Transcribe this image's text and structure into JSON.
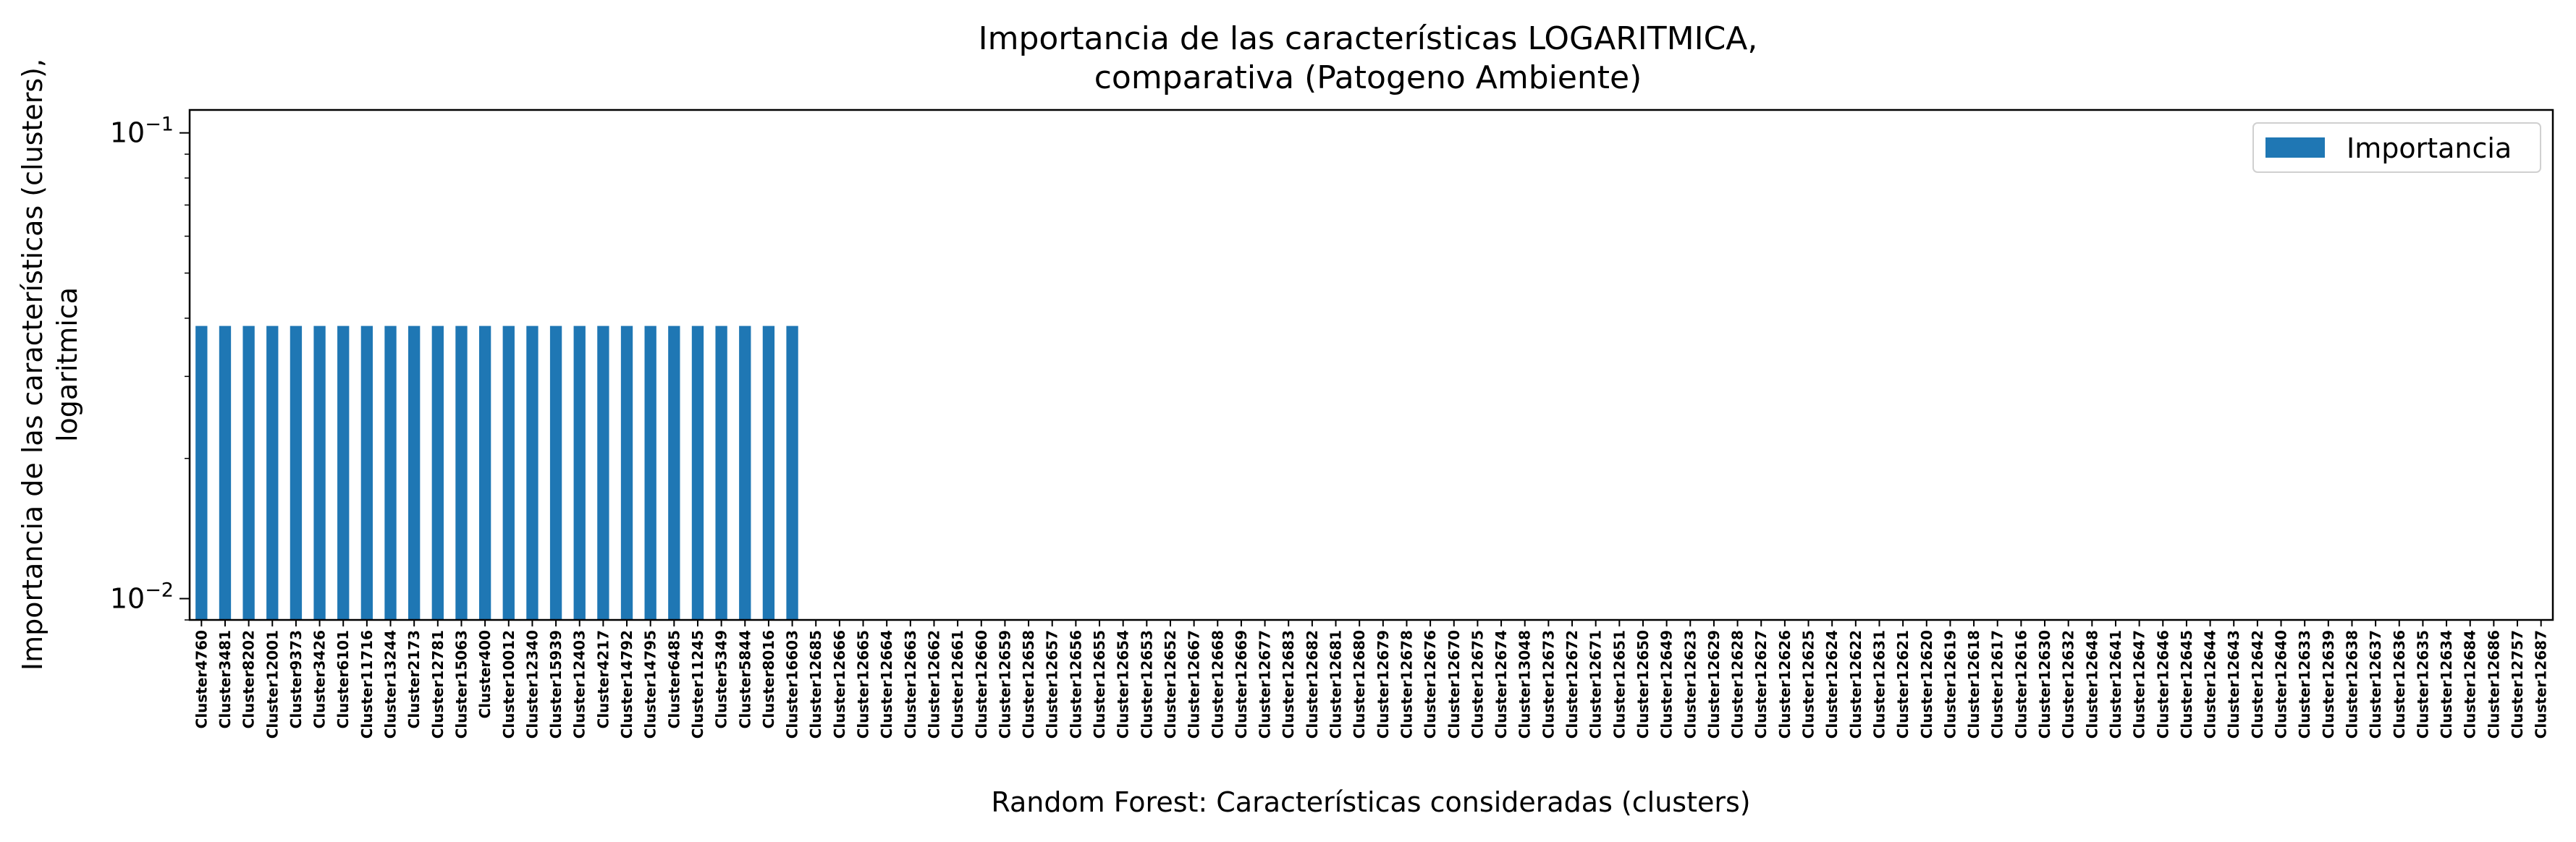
{
  "chart_data": {
    "type": "bar",
    "title_line1": "Importancia de las características LOGARITMICA,",
    "title_line2": "comparativa (Patogeno Ambiente)",
    "xlabel": "Random Forest: Características consideradas (clusters)",
    "ylabel_line1": "Importancia de las características (clusters),",
    "ylabel_line2": "logaritmica",
    "yscale": "log",
    "ylim": [
      0.009,
      0.112
    ],
    "yticks": [
      {
        "value": 0.1,
        "base": "10",
        "exp": "−1"
      },
      {
        "value": 0.01,
        "base": "10",
        "exp": "−2"
      }
    ],
    "bar_color": "#1f77b4",
    "legend": {
      "label": "Importancia",
      "position": "top-right"
    },
    "categories": [
      "Cluster4760",
      "Cluster3481",
      "Cluster8202",
      "Cluster12001",
      "Cluster9373",
      "Cluster3426",
      "Cluster6101",
      "Cluster11716",
      "Cluster13244",
      "Cluster2173",
      "Cluster12781",
      "Cluster15063",
      "Cluster400",
      "Cluster10012",
      "Cluster12340",
      "Cluster15939",
      "Cluster12403",
      "Cluster4217",
      "Cluster14792",
      "Cluster14795",
      "Cluster6485",
      "Cluster11245",
      "Cluster5349",
      "Cluster5844",
      "Cluster8016",
      "Cluster16603",
      "Cluster12685",
      "Cluster12666",
      "Cluster12665",
      "Cluster12664",
      "Cluster12663",
      "Cluster12662",
      "Cluster12661",
      "Cluster12660",
      "Cluster12659",
      "Cluster12658",
      "Cluster12657",
      "Cluster12656",
      "Cluster12655",
      "Cluster12654",
      "Cluster12653",
      "Cluster12652",
      "Cluster12667",
      "Cluster12668",
      "Cluster12669",
      "Cluster12677",
      "Cluster12683",
      "Cluster12682",
      "Cluster12681",
      "Cluster12680",
      "Cluster12679",
      "Cluster12678",
      "Cluster12676",
      "Cluster12670",
      "Cluster12675",
      "Cluster12674",
      "Cluster13048",
      "Cluster12673",
      "Cluster12672",
      "Cluster12671",
      "Cluster12651",
      "Cluster12650",
      "Cluster12649",
      "Cluster12623",
      "Cluster12629",
      "Cluster12628",
      "Cluster12627",
      "Cluster12626",
      "Cluster12625",
      "Cluster12624",
      "Cluster12622",
      "Cluster12631",
      "Cluster12621",
      "Cluster12620",
      "Cluster12619",
      "Cluster12618",
      "Cluster12617",
      "Cluster12616",
      "Cluster12630",
      "Cluster12632",
      "Cluster12648",
      "Cluster12641",
      "Cluster12647",
      "Cluster12646",
      "Cluster12645",
      "Cluster12644",
      "Cluster12643",
      "Cluster12642",
      "Cluster12640",
      "Cluster12633",
      "Cluster12639",
      "Cluster12638",
      "Cluster12637",
      "Cluster12636",
      "Cluster12635",
      "Cluster12634",
      "Cluster12684",
      "Cluster12686",
      "Cluster12757",
      "Cluster12687"
    ],
    "values": [
      0.0385,
      0.0385,
      0.0385,
      0.0385,
      0.0385,
      0.0385,
      0.0385,
      0.0385,
      0.0385,
      0.0385,
      0.0385,
      0.0385,
      0.0385,
      0.0385,
      0.0385,
      0.0385,
      0.0385,
      0.0385,
      0.0385,
      0.0385,
      0.0385,
      0.0385,
      0.0385,
      0.0385,
      0.0385,
      0.0385,
      0,
      0,
      0,
      0,
      0,
      0,
      0,
      0,
      0,
      0,
      0,
      0,
      0,
      0,
      0,
      0,
      0,
      0,
      0,
      0,
      0,
      0,
      0,
      0,
      0,
      0,
      0,
      0,
      0,
      0,
      0,
      0,
      0,
      0,
      0,
      0,
      0,
      0,
      0,
      0,
      0,
      0,
      0,
      0,
      0,
      0,
      0,
      0,
      0,
      0,
      0,
      0,
      0,
      0,
      0,
      0,
      0,
      0,
      0,
      0,
      0,
      0,
      0,
      0,
      0,
      0,
      0,
      0,
      0,
      0,
      0,
      0,
      0,
      0
    ]
  }
}
